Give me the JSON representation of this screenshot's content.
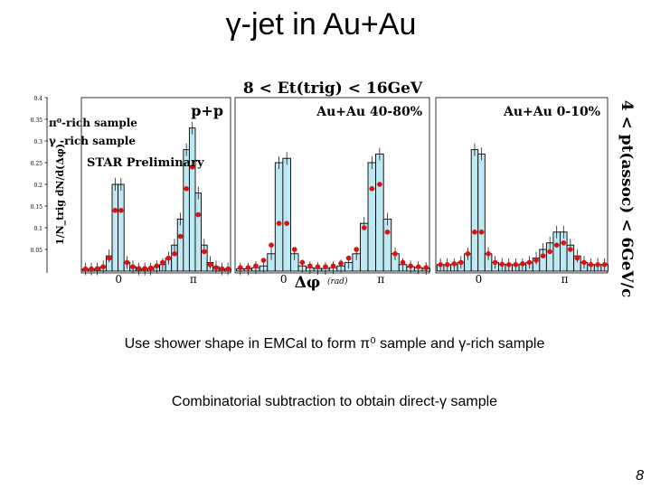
{
  "slide": {
    "title": "γ-jet in Au+Au",
    "caption1": "Use shower shape in EMCal to form π⁰ sample and γ-rich sample",
    "caption2": "Combinatorial subtraction to obtain direct-γ sample",
    "page_number": "8"
  },
  "colors": {
    "pi0_series": "#33aaee",
    "gamma_series": "#dd1111",
    "fill": "#bfe9f2",
    "histogram_line": "#000000"
  },
  "chart_data": {
    "type": "bar",
    "title": "8 < Et(trig) < 16GeV",
    "side_label": "4 < pt(assoc) < 6GeV/c",
    "ylabel": "1/N_trig dN/d(Δφ)",
    "xlabel": "Δφ",
    "xunit": "(rad)",
    "x_ticks": [
      "0",
      "π"
    ],
    "y_ticks": [
      "0.4",
      "0.35",
      "0.3",
      "0.25",
      "0.2",
      "0.15",
      "0.1",
      "0.05"
    ],
    "ylim": [
      0,
      0.4
    ],
    "xlim": [
      -1.57,
      4.71
    ],
    "legend": [
      {
        "label": "π⁰-rich sample",
        "color": "#33aaee"
      },
      {
        "label": "γ -rich sample",
        "color": "#dd1111"
      }
    ],
    "annotation": "STAR Preliminary",
    "x": [
      -1.4,
      -1.15,
      -0.9,
      -0.65,
      -0.4,
      -0.15,
      0.1,
      0.35,
      0.6,
      0.85,
      1.1,
      1.35,
      1.6,
      1.85,
      2.1,
      2.35,
      2.6,
      2.85,
      3.1,
      3.35,
      3.6,
      3.85,
      4.1,
      4.35,
      4.6
    ],
    "panels": [
      {
        "label": "p+p",
        "pi0_rich": [
          0.005,
          0.005,
          0.005,
          0.01,
          0.035,
          0.2,
          0.2,
          0.02,
          0.01,
          0.005,
          0.005,
          0.005,
          0.01,
          0.015,
          0.03,
          0.06,
          0.12,
          0.28,
          0.33,
          0.18,
          0.06,
          0.02,
          0.01,
          0.005,
          0.005
        ],
        "gamma_rich": [
          0.005,
          0.005,
          0.006,
          0.01,
          0.03,
          0.14,
          0.14,
          0.02,
          0.01,
          0.006,
          0.006,
          0.007,
          0.012,
          0.02,
          0.03,
          0.04,
          0.08,
          0.19,
          0.24,
          0.13,
          0.045,
          0.015,
          0.008,
          0.005,
          0.005
        ]
      },
      {
        "label": "Au+Au 40-80%",
        "pi0_rich": [
          0.005,
          0.005,
          0.008,
          0.012,
          0.04,
          0.25,
          0.26,
          0.04,
          0.012,
          0.008,
          0.006,
          0.006,
          0.008,
          0.012,
          0.02,
          0.04,
          0.11,
          0.25,
          0.27,
          0.12,
          0.04,
          0.015,
          0.01,
          0.008,
          0.006
        ],
        "gamma_rich": [
          0.008,
          0.008,
          0.012,
          0.025,
          0.06,
          0.11,
          0.11,
          0.05,
          0.02,
          0.012,
          0.01,
          0.01,
          0.012,
          0.018,
          0.03,
          0.05,
          0.1,
          0.19,
          0.2,
          0.09,
          0.04,
          0.02,
          0.012,
          0.01,
          0.008
        ]
      },
      {
        "label": "Au+Au 0-10%",
        "pi0_rich": [
          0.015,
          0.015,
          0.015,
          0.02,
          0.04,
          0.28,
          0.27,
          0.04,
          0.02,
          0.016,
          0.015,
          0.015,
          0.015,
          0.02,
          0.03,
          0.05,
          0.065,
          0.09,
          0.09,
          0.06,
          0.035,
          0.02,
          0.015,
          0.015,
          0.015
        ],
        "gamma_rich": [
          0.015,
          0.015,
          0.017,
          0.02,
          0.04,
          0.09,
          0.09,
          0.04,
          0.02,
          0.016,
          0.015,
          0.015,
          0.017,
          0.02,
          0.025,
          0.035,
          0.045,
          0.06,
          0.065,
          0.05,
          0.03,
          0.02,
          0.015,
          0.015,
          0.015
        ]
      }
    ]
  }
}
